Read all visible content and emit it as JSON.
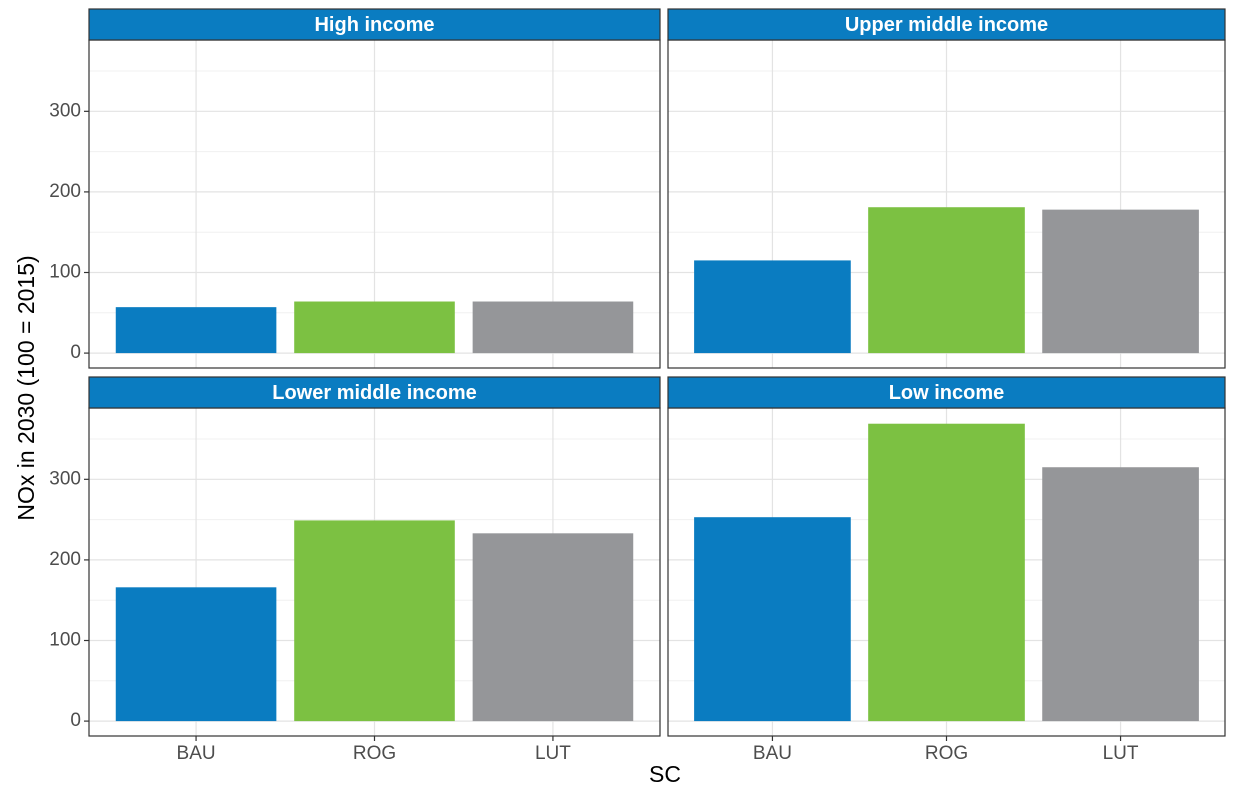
{
  "axis_labels": {
    "x": "SC",
    "y": "NOx in 2030 (100 = 2015)"
  },
  "chart_data": [
    {
      "type": "bar",
      "title": "High income",
      "categories": [
        "BAU",
        "ROG",
        "LUT"
      ],
      "values": [
        57,
        64,
        64
      ],
      "colors": [
        "#0a7cc1",
        "#7cc142",
        "#959699"
      ],
      "ylim": [
        -18.5,
        388.5
      ],
      "yticks": [
        0,
        100,
        200,
        300
      ],
      "minor_yticks": [
        50,
        150,
        250,
        350
      ],
      "grid": true
    },
    {
      "type": "bar",
      "title": "Upper middle income",
      "categories": [
        "BAU",
        "ROG",
        "LUT"
      ],
      "values": [
        115,
        181,
        178
      ],
      "colors": [
        "#0a7cc1",
        "#7cc142",
        "#959699"
      ],
      "ylim": [
        -18.5,
        388.5
      ],
      "yticks": [
        0,
        100,
        200,
        300
      ],
      "minor_yticks": [
        50,
        150,
        250,
        350
      ],
      "grid": true
    },
    {
      "type": "bar",
      "title": "Lower middle income",
      "categories": [
        "BAU",
        "ROG",
        "LUT"
      ],
      "values": [
        166,
        249,
        233
      ],
      "colors": [
        "#0a7cc1",
        "#7cc142",
        "#959699"
      ],
      "ylim": [
        -18.5,
        388.5
      ],
      "yticks": [
        0,
        100,
        200,
        300
      ],
      "minor_yticks": [
        50,
        150,
        250,
        350
      ],
      "grid": true
    },
    {
      "type": "bar",
      "title": "Low income",
      "categories": [
        "BAU",
        "ROG",
        "LUT"
      ],
      "values": [
        253,
        369,
        315
      ],
      "colors": [
        "#0a7cc1",
        "#7cc142",
        "#959699"
      ],
      "ylim": [
        -18.5,
        388.5
      ],
      "yticks": [
        0,
        100,
        200,
        300
      ],
      "minor_yticks": [
        50,
        150,
        250,
        350
      ],
      "grid": true
    }
  ]
}
